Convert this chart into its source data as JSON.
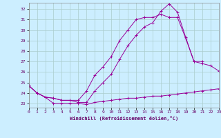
{
  "xlabel": "Windchill (Refroidissement éolien,°C)",
  "background_color": "#cceeff",
  "grid_color": "#aacccc",
  "line_color": "#990099",
  "x_values": [
    0,
    1,
    2,
    3,
    4,
    5,
    6,
    7,
    8,
    9,
    10,
    11,
    12,
    13,
    14,
    15,
    16,
    17,
    18,
    19,
    20,
    21,
    22,
    23
  ],
  "line1": [
    24.7,
    24.0,
    23.6,
    23.0,
    23.0,
    23.0,
    23.0,
    22.9,
    23.1,
    23.2,
    23.3,
    23.4,
    23.5,
    23.5,
    23.6,
    23.7,
    23.7,
    23.8,
    23.9,
    24.0,
    24.1,
    24.2,
    24.3,
    24.4
  ],
  "line2": [
    24.7,
    24.0,
    23.6,
    23.5,
    23.3,
    23.3,
    23.3,
    24.2,
    25.7,
    26.5,
    27.5,
    29.0,
    30.0,
    31.0,
    31.2,
    31.2,
    31.5,
    31.2,
    31.2,
    29.2,
    27.0,
    26.8,
    26.6,
    26.1
  ],
  "line3": [
    24.7,
    24.0,
    23.6,
    23.5,
    23.3,
    23.3,
    23.1,
    23.1,
    24.2,
    25.0,
    25.8,
    27.2,
    28.5,
    29.5,
    30.3,
    30.7,
    31.8,
    32.5,
    31.7,
    29.3,
    27.0,
    27.0,
    null,
    null
  ],
  "ylim": [
    22.6,
    32.6
  ],
  "xlim": [
    0,
    23
  ],
  "yticks": [
    23,
    24,
    25,
    26,
    27,
    28,
    29,
    30,
    31,
    32
  ],
  "xticks": [
    0,
    1,
    2,
    3,
    4,
    5,
    6,
    7,
    8,
    9,
    10,
    11,
    12,
    13,
    14,
    15,
    16,
    17,
    18,
    19,
    20,
    21,
    22,
    23
  ]
}
